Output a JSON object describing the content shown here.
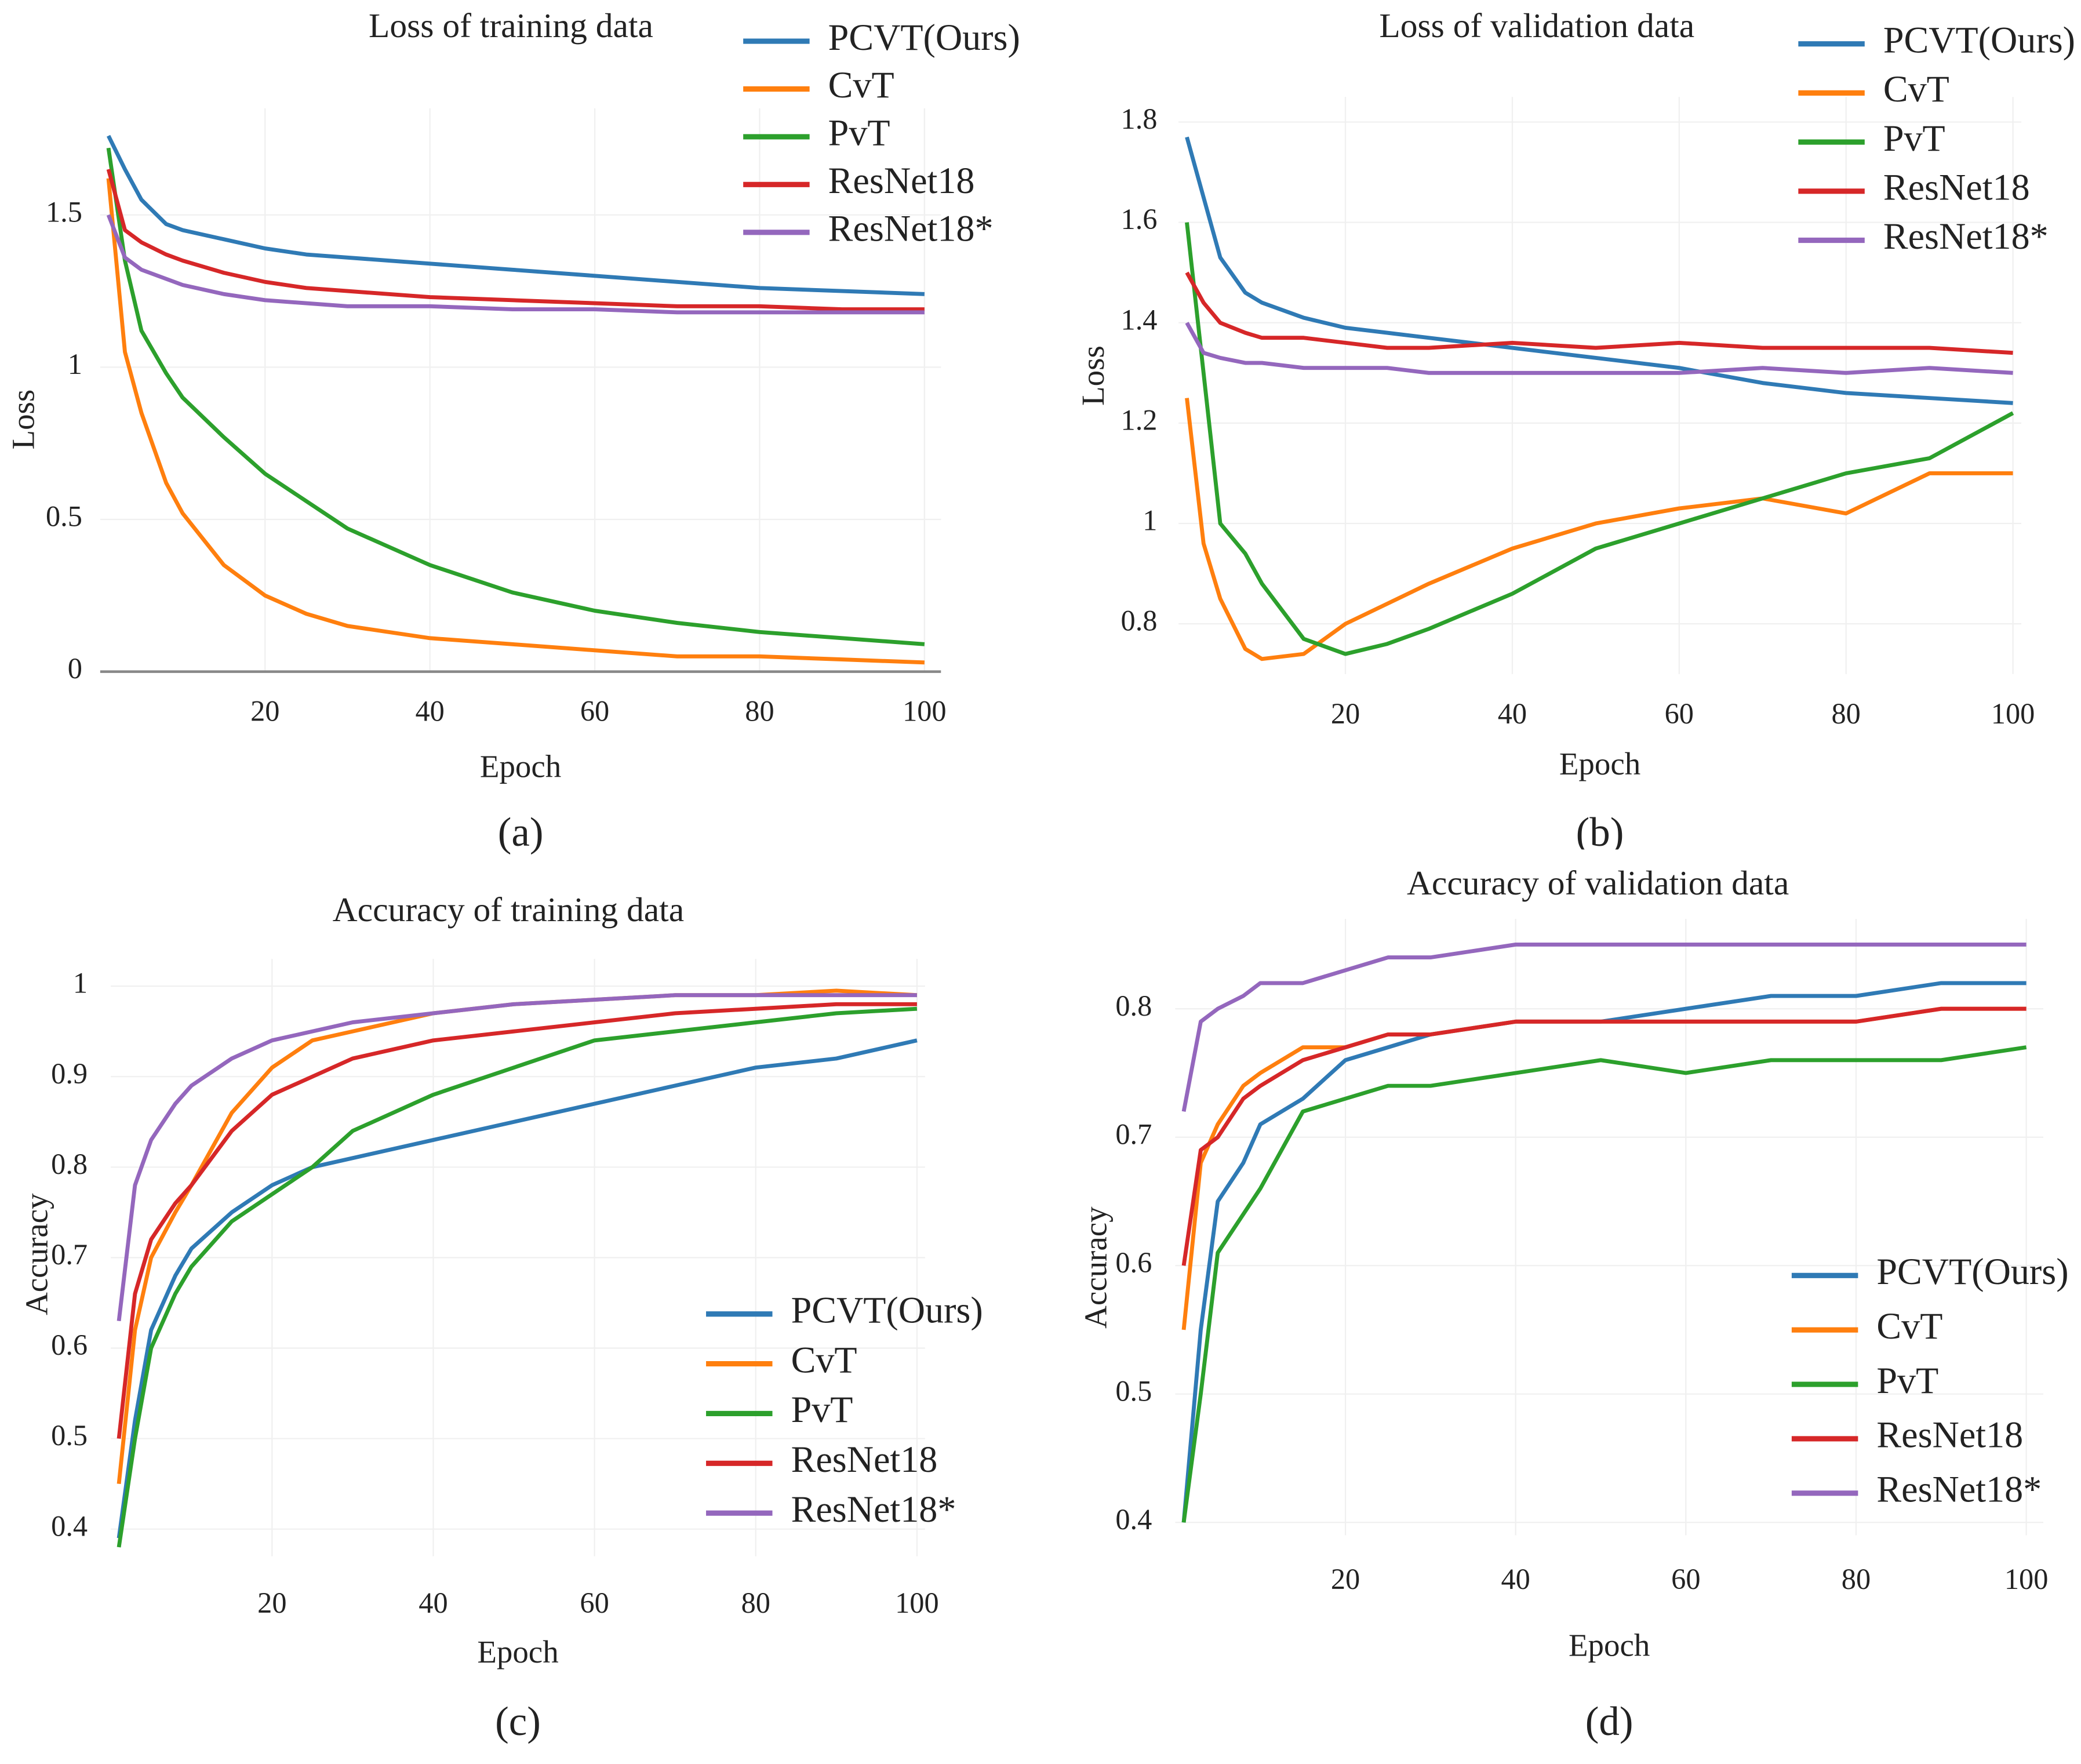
{
  "chart_data": [
    {
      "type": "line",
      "title": "Loss of training data",
      "panel_label": "(a)",
      "xlabel": "Epoch",
      "ylabel": "Loss",
      "x": [
        1,
        3,
        5,
        8,
        10,
        15,
        20,
        25,
        30,
        40,
        50,
        60,
        70,
        80,
        90,
        100
      ],
      "xlim": [
        0,
        102
      ],
      "ylim": [
        0,
        1.85
      ],
      "xticks": [
        20,
        40,
        60,
        80,
        100
      ],
      "yticks": [
        0,
        0.5,
        1,
        1.5
      ],
      "grid": true,
      "legend": "upper right",
      "series": [
        {
          "name": "PCVT(Ours)",
          "color": "#2f7ab5",
          "values": [
            1.76,
            1.65,
            1.55,
            1.47,
            1.45,
            1.42,
            1.39,
            1.37,
            1.36,
            1.34,
            1.32,
            1.3,
            1.28,
            1.26,
            1.25,
            1.24
          ]
        },
        {
          "name": "CvT",
          "color": "#ff7f0e",
          "values": [
            1.62,
            1.05,
            0.85,
            0.62,
            0.52,
            0.35,
            0.25,
            0.19,
            0.15,
            0.11,
            0.09,
            0.07,
            0.05,
            0.05,
            0.04,
            0.03
          ]
        },
        {
          "name": "PvT",
          "color": "#2ca02c",
          "values": [
            1.72,
            1.35,
            1.12,
            0.98,
            0.9,
            0.77,
            0.65,
            0.56,
            0.47,
            0.35,
            0.26,
            0.2,
            0.16,
            0.13,
            0.11,
            0.09
          ]
        },
        {
          "name": "ResNet18",
          "color": "#d62728",
          "values": [
            1.65,
            1.45,
            1.41,
            1.37,
            1.35,
            1.31,
            1.28,
            1.26,
            1.25,
            1.23,
            1.22,
            1.21,
            1.2,
            1.2,
            1.19,
            1.19
          ]
        },
        {
          "name": "ResNet18*",
          "color": "#9467bd",
          "values": [
            1.5,
            1.36,
            1.32,
            1.29,
            1.27,
            1.24,
            1.22,
            1.21,
            1.2,
            1.2,
            1.19,
            1.19,
            1.18,
            1.18,
            1.18,
            1.18
          ]
        }
      ]
    },
    {
      "type": "line",
      "title": "Loss of validation data",
      "panel_label": "(b)",
      "xlabel": "Epoch",
      "ylabel": "Loss",
      "x": [
        1,
        3,
        5,
        8,
        10,
        15,
        20,
        25,
        30,
        40,
        50,
        60,
        70,
        80,
        90,
        100
      ],
      "xlim": [
        0,
        101
      ],
      "ylim": [
        0.7,
        1.85
      ],
      "xticks": [
        20,
        40,
        60,
        80,
        100
      ],
      "yticks": [
        0.8,
        1,
        1.2,
        1.4,
        1.6,
        1.8
      ],
      "grid": true,
      "legend": "upper right",
      "series": [
        {
          "name": "PCVT(Ours)",
          "color": "#2f7ab5",
          "values": [
            1.77,
            1.65,
            1.53,
            1.46,
            1.44,
            1.41,
            1.39,
            1.38,
            1.37,
            1.35,
            1.33,
            1.31,
            1.28,
            1.26,
            1.25,
            1.24
          ]
        },
        {
          "name": "CvT",
          "color": "#ff7f0e",
          "values": [
            1.25,
            0.96,
            0.85,
            0.75,
            0.73,
            0.74,
            0.8,
            0.84,
            0.88,
            0.95,
            1.0,
            1.03,
            1.05,
            1.02,
            1.1,
            1.1
          ]
        },
        {
          "name": "PvT",
          "color": "#2ca02c",
          "values": [
            1.6,
            1.3,
            1.0,
            0.94,
            0.88,
            0.77,
            0.74,
            0.76,
            0.79,
            0.86,
            0.95,
            1.0,
            1.05,
            1.1,
            1.13,
            1.22
          ]
        },
        {
          "name": "ResNet18",
          "color": "#d62728",
          "values": [
            1.5,
            1.44,
            1.4,
            1.38,
            1.37,
            1.37,
            1.36,
            1.35,
            1.35,
            1.36,
            1.35,
            1.36,
            1.35,
            1.35,
            1.35,
            1.34
          ]
        },
        {
          "name": "ResNet18*",
          "color": "#9467bd",
          "values": [
            1.4,
            1.34,
            1.33,
            1.32,
            1.32,
            1.31,
            1.31,
            1.31,
            1.3,
            1.3,
            1.3,
            1.3,
            1.31,
            1.3,
            1.31,
            1.3
          ]
        }
      ]
    },
    {
      "type": "line",
      "title": "Accuracy of training data",
      "panel_label": "(c)",
      "xlabel": "Epoch",
      "ylabel": "Accuracy",
      "x": [
        1,
        3,
        5,
        8,
        10,
        15,
        20,
        25,
        30,
        40,
        50,
        60,
        70,
        80,
        90,
        100
      ],
      "xlim": [
        0,
        101
      ],
      "ylim": [
        0.37,
        1.03
      ],
      "xticks": [
        20,
        40,
        60,
        80,
        100
      ],
      "yticks": [
        0.4,
        0.5,
        0.6,
        0.7,
        0.8,
        0.9,
        1
      ],
      "grid": true,
      "legend": "lower right",
      "series": [
        {
          "name": "PCVT(Ours)",
          "color": "#2f7ab5",
          "values": [
            0.39,
            0.52,
            0.62,
            0.68,
            0.71,
            0.75,
            0.78,
            0.8,
            0.81,
            0.83,
            0.85,
            0.87,
            0.89,
            0.91,
            0.92,
            0.94
          ]
        },
        {
          "name": "CvT",
          "color": "#ff7f0e",
          "values": [
            0.45,
            0.62,
            0.7,
            0.75,
            0.78,
            0.86,
            0.91,
            0.94,
            0.95,
            0.97,
            0.98,
            0.985,
            0.99,
            0.99,
            0.995,
            0.99
          ]
        },
        {
          "name": "PvT",
          "color": "#2ca02c",
          "values": [
            0.38,
            0.5,
            0.6,
            0.66,
            0.69,
            0.74,
            0.77,
            0.8,
            0.84,
            0.88,
            0.91,
            0.94,
            0.95,
            0.96,
            0.97,
            0.975
          ]
        },
        {
          "name": "ResNet18",
          "color": "#d62728",
          "values": [
            0.5,
            0.66,
            0.72,
            0.76,
            0.78,
            0.84,
            0.88,
            0.9,
            0.92,
            0.94,
            0.95,
            0.96,
            0.97,
            0.975,
            0.98,
            0.98
          ]
        },
        {
          "name": "ResNet18*",
          "color": "#9467bd",
          "values": [
            0.63,
            0.78,
            0.83,
            0.87,
            0.89,
            0.92,
            0.94,
            0.95,
            0.96,
            0.97,
            0.98,
            0.985,
            0.99,
            0.99,
            0.99,
            0.99
          ]
        }
      ]
    },
    {
      "type": "line",
      "title": "Accuracy of validation data",
      "panel_label": "(d)",
      "xlabel": "Epoch",
      "ylabel": "Accuracy",
      "x": [
        1,
        3,
        5,
        8,
        10,
        15,
        20,
        25,
        30,
        40,
        50,
        60,
        70,
        80,
        90,
        100
      ],
      "xlim": [
        0,
        102
      ],
      "ylim": [
        0.39,
        0.87
      ],
      "xticks": [
        20,
        40,
        60,
        80,
        100
      ],
      "yticks": [
        0.4,
        0.5,
        0.6,
        0.7,
        0.8
      ],
      "grid": true,
      "legend": "center right",
      "series": [
        {
          "name": "PCVT(Ours)",
          "color": "#2f7ab5",
          "values": [
            0.4,
            0.55,
            0.65,
            0.68,
            0.71,
            0.73,
            0.76,
            0.77,
            0.78,
            0.79,
            0.79,
            0.8,
            0.81,
            0.81,
            0.82,
            0.82
          ]
        },
        {
          "name": "CvT",
          "color": "#ff7f0e",
          "values": [
            0.55,
            0.68,
            0.71,
            0.74,
            0.75,
            0.77,
            0.77,
            0.78,
            0.78,
            0.79,
            0.79,
            0.79,
            0.79,
            0.79,
            0.8,
            0.8
          ]
        },
        {
          "name": "PvT",
          "color": "#2ca02c",
          "values": [
            0.4,
            0.5,
            0.61,
            0.64,
            0.66,
            0.72,
            0.73,
            0.74,
            0.74,
            0.75,
            0.76,
            0.75,
            0.76,
            0.76,
            0.76,
            0.77
          ]
        },
        {
          "name": "ResNet18",
          "color": "#d62728",
          "values": [
            0.6,
            0.69,
            0.7,
            0.73,
            0.74,
            0.76,
            0.77,
            0.78,
            0.78,
            0.79,
            0.79,
            0.79,
            0.79,
            0.79,
            0.8,
            0.8
          ]
        },
        {
          "name": "ResNet18*",
          "color": "#9467bd",
          "values": [
            0.72,
            0.79,
            0.8,
            0.81,
            0.82,
            0.82,
            0.83,
            0.84,
            0.84,
            0.85,
            0.85,
            0.85,
            0.85,
            0.85,
            0.85,
            0.85
          ]
        }
      ]
    }
  ]
}
